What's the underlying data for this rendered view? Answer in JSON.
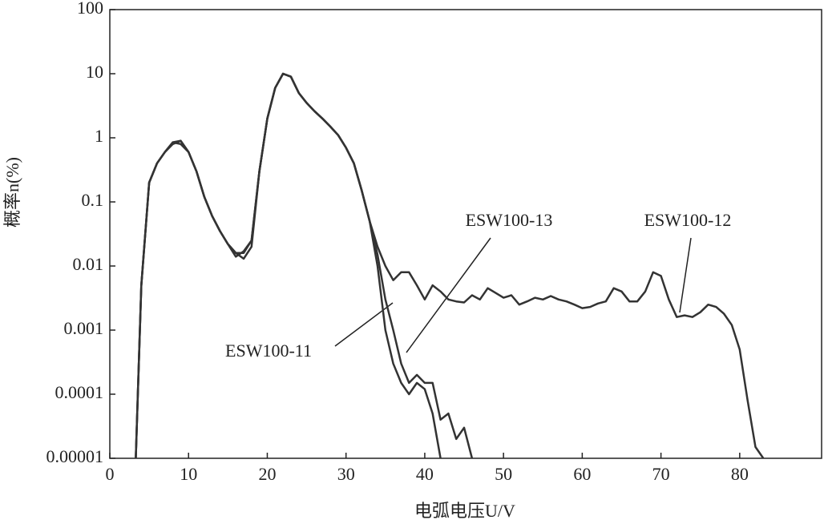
{
  "chart_data": {
    "type": "line",
    "xlabel": "电弧电压U/V",
    "ylabel": "概率n(%)",
    "yscale": "log",
    "xlim": [
      0,
      90.4
    ],
    "xticks": [
      0,
      10,
      20,
      30,
      40,
      50,
      60,
      70,
      80
    ],
    "ylim": [
      1e-05,
      100
    ],
    "yticks": [
      1e-05,
      0.0001,
      0.001,
      0.01,
      0.1,
      1,
      10,
      100
    ],
    "grid": false,
    "x": [
      3.3,
      4,
      5,
      6,
      7,
      8,
      9,
      10,
      11,
      12,
      13,
      14,
      15,
      16,
      17,
      18,
      19,
      20,
      21,
      22,
      23,
      24,
      25,
      26,
      27,
      28,
      29,
      30,
      31,
      32,
      33,
      34,
      35,
      36,
      37,
      38,
      39,
      40,
      41,
      42,
      43,
      44,
      45,
      46,
      47,
      48,
      49,
      50,
      51,
      52,
      53,
      54,
      55,
      56,
      57,
      58,
      59,
      60,
      61,
      62,
      63,
      64,
      65,
      66,
      67,
      68,
      69,
      70,
      71,
      72,
      73,
      74,
      75,
      76,
      77,
      78,
      79,
      80,
      81,
      82,
      83
    ],
    "series": [
      {
        "name": "ESW100-12",
        "color": "#333333",
        "values": [
          1e-05,
          0.005,
          0.2,
          0.4,
          0.6,
          0.85,
          0.9,
          0.6,
          0.3,
          0.12,
          0.06,
          0.035,
          0.022,
          0.016,
          0.016,
          0.025,
          0.3,
          2,
          6,
          10,
          9,
          5,
          3.5,
          2.6,
          2,
          1.5,
          1.1,
          0.7,
          0.4,
          0.15,
          0.05,
          0.02,
          0.01,
          0.006,
          0.008,
          0.008,
          0.005,
          0.003,
          0.005,
          0.004,
          0.003,
          0.0028,
          0.0027,
          0.0035,
          0.003,
          0.0045,
          0.0038,
          0.0032,
          0.0035,
          0.0025,
          0.0028,
          0.0032,
          0.003,
          0.0034,
          0.003,
          0.0028,
          0.0025,
          0.0022,
          0.0023,
          0.0026,
          0.0028,
          0.0045,
          0.004,
          0.0028,
          0.0028,
          0.004,
          0.008,
          0.007,
          0.003,
          0.0016,
          0.0017,
          0.0016,
          0.0019,
          0.0025,
          0.0023,
          0.0018,
          0.0012,
          0.0005,
          8e-05,
          1.5e-05,
          1e-05
        ]
      },
      {
        "name": "ESW100-13",
        "color": "#333333",
        "values": [
          1e-05,
          0.005,
          0.2,
          0.4,
          0.6,
          0.8,
          0.9,
          0.6,
          0.3,
          0.12,
          0.06,
          0.035,
          0.022,
          0.016,
          0.013,
          0.02,
          0.3,
          2,
          6,
          10,
          9,
          5,
          3.5,
          2.6,
          2,
          1.5,
          1.1,
          0.7,
          0.4,
          0.15,
          0.05,
          0.015,
          0.003,
          0.001,
          0.0003,
          0.00015,
          0.0002,
          0.00015,
          0.00015,
          4e-05,
          5e-05,
          2e-05,
          3e-05,
          1e-05,
          null,
          null,
          null,
          null,
          null,
          null,
          null,
          null,
          null,
          null,
          null,
          null,
          null,
          null,
          null,
          null,
          null,
          null,
          null,
          null,
          null,
          null,
          null,
          null,
          null,
          null,
          null,
          null,
          null,
          null,
          null,
          null,
          null,
          null,
          null,
          null,
          null
        ]
      },
      {
        "name": "ESW100-11",
        "color": "#333333",
        "values": [
          1e-05,
          0.005,
          0.2,
          0.4,
          0.6,
          0.85,
          0.8,
          0.6,
          0.3,
          0.12,
          0.06,
          0.035,
          0.022,
          0.014,
          0.017,
          0.025,
          0.3,
          2,
          6,
          10,
          9,
          5,
          3.5,
          2.6,
          2,
          1.5,
          1.1,
          0.7,
          0.4,
          0.15,
          0.05,
          0.01,
          0.001,
          0.0003,
          0.00015,
          0.0001,
          0.00015,
          0.00012,
          5e-05,
          1e-05,
          null,
          null,
          null,
          null,
          null,
          null,
          null,
          null,
          null,
          null,
          null,
          null,
          null,
          null,
          null,
          null,
          null,
          null,
          null,
          null,
          null,
          null,
          null,
          null,
          null,
          null,
          null,
          null,
          null,
          null,
          null,
          null,
          null,
          null,
          null,
          null,
          null,
          null,
          null,
          null,
          null
        ]
      }
    ]
  }
}
